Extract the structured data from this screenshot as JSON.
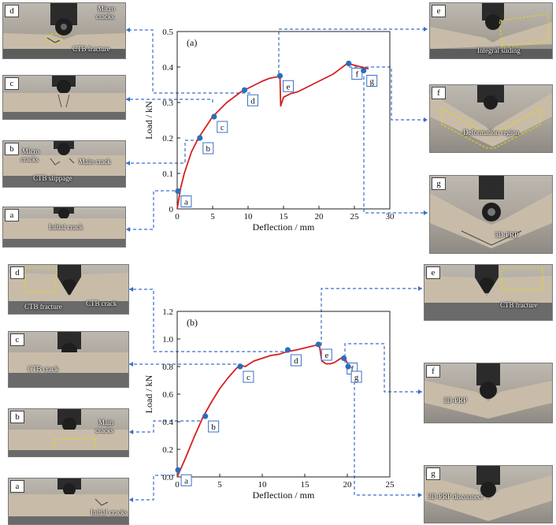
{
  "colors": {
    "curve": "#d61f1f",
    "marker": "#2a6ebb",
    "connector": "#3b6fc9",
    "crack_outline": "#e8d800"
  },
  "chart_data": [
    {
      "type": "line",
      "title": "(a)",
      "xlabel": "Deflection / mm",
      "ylabel": "Load / kN",
      "xlim": [
        0,
        30
      ],
      "ylim": [
        0,
        0.5
      ],
      "xticks": [
        0,
        5,
        10,
        15,
        20,
        25,
        30
      ],
      "yticks": [
        0,
        0.1,
        0.2,
        0.3,
        0.4,
        0.5
      ],
      "series": [
        {
          "x": [
            0,
            0.5,
            1,
            2,
            3,
            4,
            5,
            6,
            7,
            8,
            9,
            10,
            11,
            12,
            13,
            14,
            14.5,
            14.6,
            15,
            16,
            17,
            18,
            19,
            20,
            21,
            22,
            23,
            24,
            25,
            26,
            27
          ],
          "y": [
            0.0,
            0.06,
            0.1,
            0.16,
            0.2,
            0.23,
            0.26,
            0.28,
            0.3,
            0.315,
            0.33,
            0.34,
            0.35,
            0.36,
            0.368,
            0.372,
            0.375,
            0.29,
            0.315,
            0.325,
            0.33,
            0.34,
            0.35,
            0.36,
            0.37,
            0.38,
            0.395,
            0.41,
            0.405,
            0.4,
            0.395
          ]
        }
      ],
      "points": [
        {
          "label": "a",
          "x": 0.1,
          "y": 0.05
        },
        {
          "label": "b",
          "x": 3.2,
          "y": 0.2
        },
        {
          "label": "c",
          "x": 5.2,
          "y": 0.26
        },
        {
          "label": "d",
          "x": 9.5,
          "y": 0.335
        },
        {
          "label": "e",
          "x": 14.5,
          "y": 0.375
        },
        {
          "label": "f",
          "x": 24.2,
          "y": 0.41
        },
        {
          "label": "g",
          "x": 26.3,
          "y": 0.39
        }
      ]
    },
    {
      "type": "line",
      "title": "(b)",
      "xlabel": "Deflection / mm",
      "ylabel": "Load / kN",
      "xlim": [
        0,
        25
      ],
      "ylim": [
        0,
        1.2
      ],
      "xticks": [
        0,
        5,
        10,
        15,
        20,
        25
      ],
      "yticks": [
        0,
        0.2,
        0.4,
        0.6,
        0.8,
        1.0,
        1.2
      ],
      "series": [
        {
          "x": [
            0,
            0.5,
            1,
            2,
            3,
            4,
            5,
            6,
            7,
            7.5,
            8,
            9,
            10,
            11,
            12,
            13,
            14,
            15,
            16,
            16.7,
            17,
            17.5,
            18,
            18.5,
            19,
            19.5,
            19.8,
            20.2
          ],
          "y": [
            0.0,
            0.07,
            0.14,
            0.29,
            0.43,
            0.54,
            0.64,
            0.72,
            0.79,
            0.81,
            0.8,
            0.84,
            0.86,
            0.88,
            0.89,
            0.91,
            0.92,
            0.935,
            0.95,
            0.96,
            0.84,
            0.82,
            0.82,
            0.83,
            0.85,
            0.87,
            0.85,
            0.8
          ]
        }
      ],
      "points": [
        {
          "label": "a",
          "x": 0.1,
          "y": 0.05
        },
        {
          "label": "b",
          "x": 3.3,
          "y": 0.44
        },
        {
          "label": "c",
          "x": 7.4,
          "y": 0.8
        },
        {
          "label": "d",
          "x": 13.0,
          "y": 0.92
        },
        {
          "label": "e",
          "x": 16.6,
          "y": 0.96
        },
        {
          "label": "f",
          "x": 19.6,
          "y": 0.86
        },
        {
          "label": "g",
          "x": 20.1,
          "y": 0.8
        }
      ]
    }
  ],
  "photos_a": [
    {
      "label": "d",
      "annotations": [
        "Micro",
        "cracks",
        "CTB fracture"
      ]
    },
    {
      "label": "c",
      "annotations": []
    },
    {
      "label": "b",
      "annotations": [
        "Micro",
        "cracks",
        "Main crack",
        "CTB slippage"
      ]
    },
    {
      "label": "a",
      "annotations": [
        "Initial crack"
      ]
    },
    {
      "label": "e",
      "annotations": [
        "Integral sliding"
      ]
    },
    {
      "label": "f",
      "annotations": [
        "Deformation region"
      ]
    },
    {
      "label": "g",
      "annotations": [
        "3D-PRP"
      ]
    }
  ],
  "photos_b": [
    {
      "label": "d",
      "annotations": [
        "CTB fracture",
        "CTB crack"
      ]
    },
    {
      "label": "c",
      "annotations": [
        "CTB crack"
      ]
    },
    {
      "label": "b",
      "annotations": [
        "Main",
        "cracks"
      ]
    },
    {
      "label": "a",
      "annotations": [
        "Initial cracks"
      ]
    },
    {
      "label": "e",
      "annotations": [
        "CTB fracture"
      ]
    },
    {
      "label": "f",
      "annotations": [
        "3D-PRP"
      ]
    },
    {
      "label": "g",
      "annotations": [
        "3D-PRP disconnect"
      ]
    }
  ]
}
